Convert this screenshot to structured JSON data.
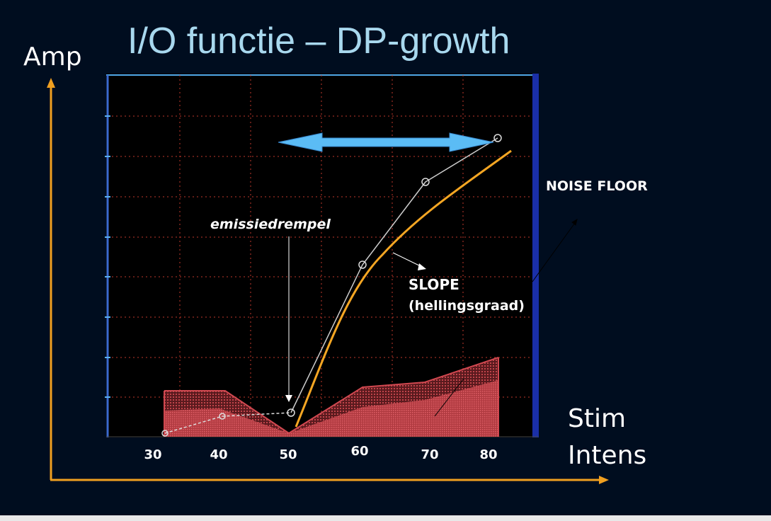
{
  "slide": {
    "title": "I/O functie – DP-growth",
    "y_axis_label": "Amp",
    "x_axis_label_line1": "Stim",
    "x_axis_label_line2": "Intens"
  },
  "annotations": {
    "threshold": "emissiedrempel",
    "noise_floor": "NOISE FLOOR",
    "slope_line1": "SLOPE",
    "slope_line2": "(hellingsgraad)"
  },
  "x_ticks": [
    "30",
    "40",
    "50",
    "60",
    "70",
    "80"
  ],
  "colors": {
    "background": "#000d1f",
    "title": "#a8d8ee",
    "axis_arrows": "#f0a020",
    "slope_curve": "#f5a623",
    "range_arrow": "#5bbcf5",
    "noise_fill": "#c0444a",
    "grid": "#c0392b",
    "plot_frame": "#3a6ad0"
  }
}
